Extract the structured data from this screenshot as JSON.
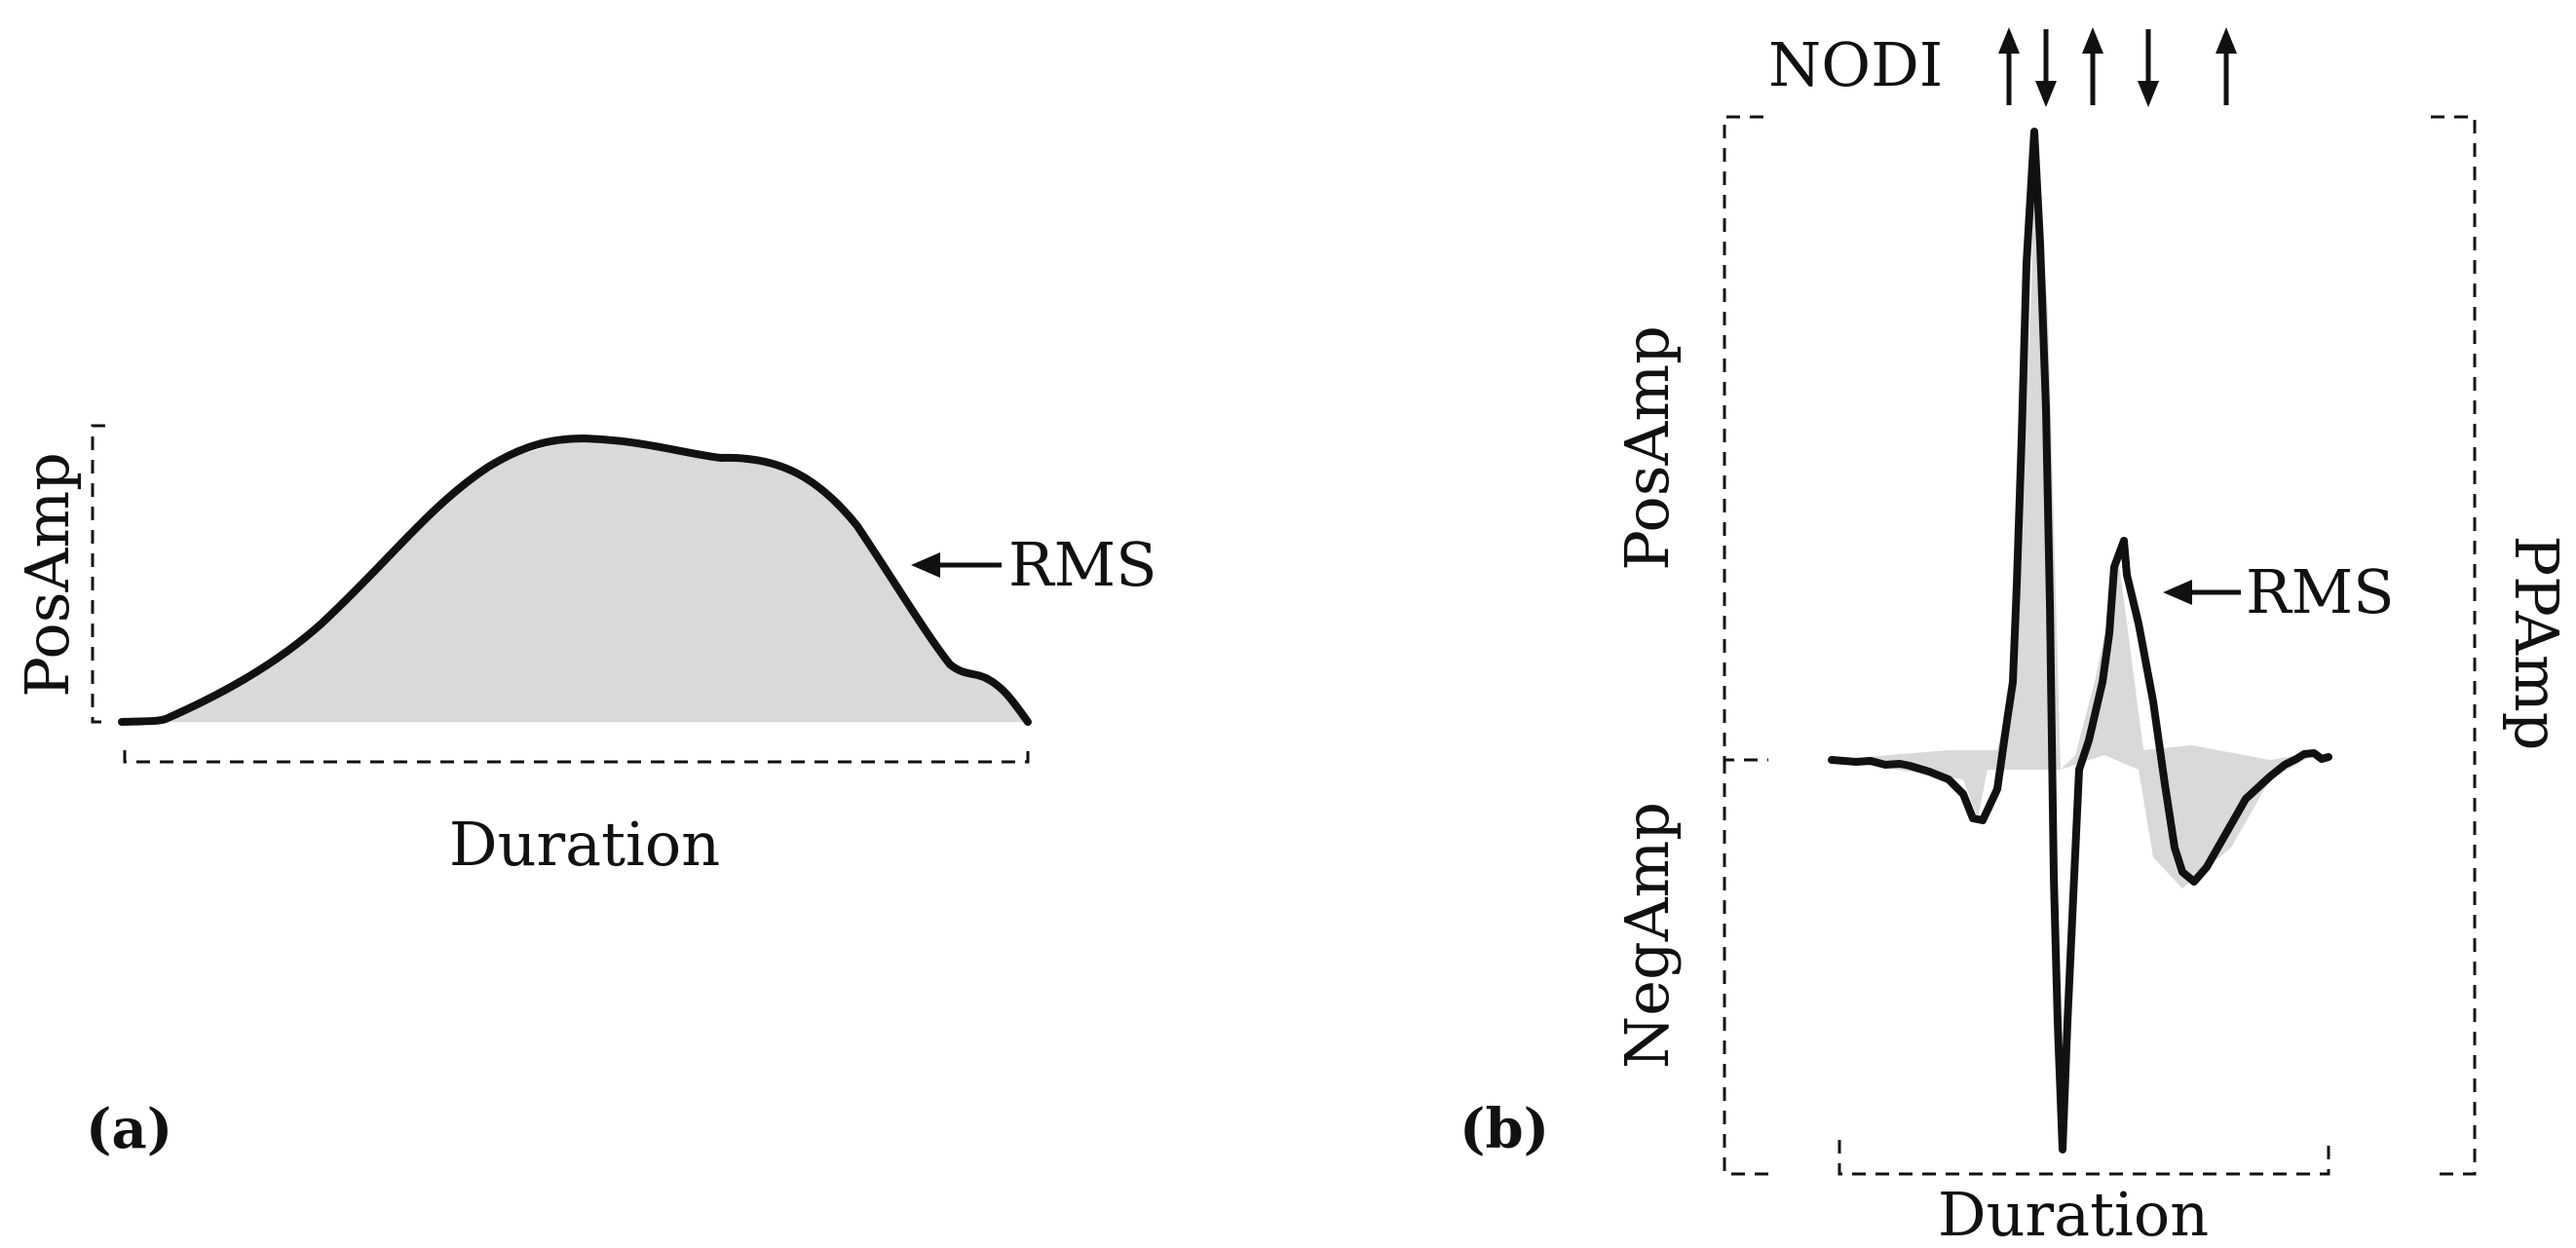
{
  "panel_a": {
    "panel_label": "(a)",
    "pos_amp_label": "PosAmp",
    "rms_label": "RMS",
    "duration_label": "Duration"
  },
  "panel_b": {
    "panel_label": "(b)",
    "nodi_label": "NODI",
    "nodi_arrows": [
      "up",
      "down",
      "up",
      "down",
      "up"
    ],
    "pos_amp_label": "PosAmp",
    "neg_amp_label": "NegAmp",
    "pp_amp_label": "PPAmp",
    "rms_label": "RMS",
    "duration_label": "Duration"
  },
  "colors": {
    "waveform": "#111111",
    "rms_fill": "#d9d9d9"
  }
}
